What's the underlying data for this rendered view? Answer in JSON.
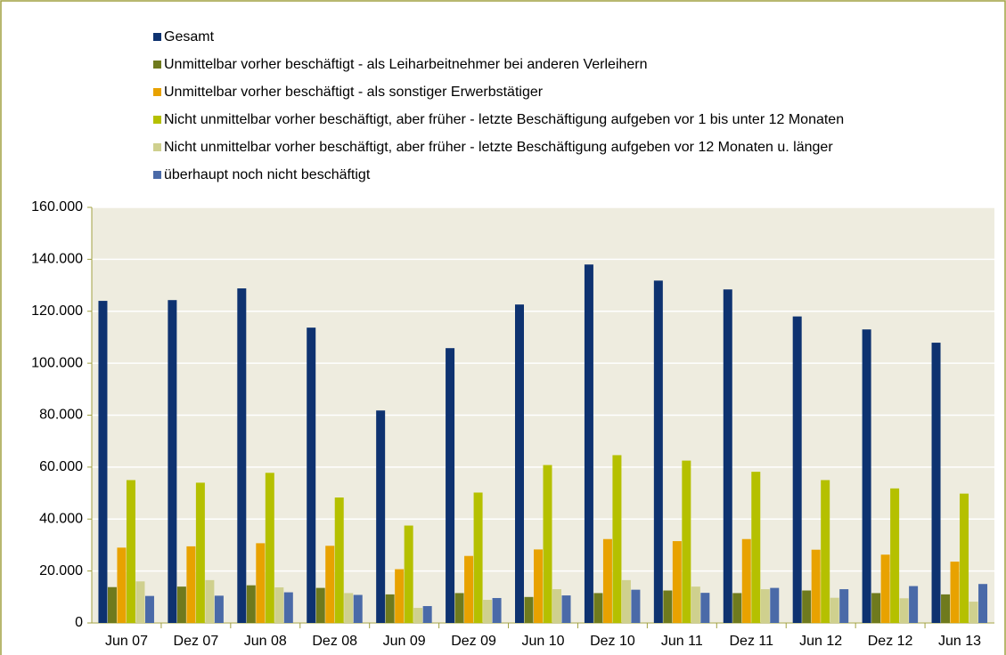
{
  "chart_data": {
    "type": "bar",
    "categories": [
      "Jun 07",
      "Dez 07",
      "Jun 08",
      "Dez 08",
      "Jun 09",
      "Dez 09",
      "Jun 10",
      "Dez 10",
      "Jun 11",
      "Dez 11",
      "Jun 12",
      "Dez 12",
      "Jun 13"
    ],
    "series": [
      {
        "name": "Gesamt",
        "color": "#0e3270",
        "values": [
          124000,
          124300,
          128800,
          113700,
          81800,
          105800,
          122600,
          138000,
          131800,
          128400,
          118000,
          113000,
          107900
        ]
      },
      {
        "name": "Unmittelbar vorher beschäftigt - als Leiharbeitnehmer bei anderen Verleihern",
        "color": "#6f7a1d",
        "values": [
          13800,
          14000,
          14500,
          13500,
          11000,
          11500,
          10000,
          11500,
          12500,
          11500,
          12500,
          11500,
          11000
        ]
      },
      {
        "name": "Unmittelbar vorher beschäftigt - als sonstiger Erwerbstätiger",
        "color": "#e8a200",
        "values": [
          29000,
          29500,
          30700,
          29700,
          20700,
          25800,
          28300,
          32300,
          31500,
          32300,
          28200,
          26300,
          23600
        ]
      },
      {
        "name": "Nicht unmittelbar vorher beschäftigt, aber früher - letzte Beschäftigung aufgeben vor 1 bis unter 12 Monaten",
        "color": "#b5c000",
        "values": [
          55000,
          54000,
          57800,
          48300,
          37500,
          50200,
          60800,
          64600,
          62500,
          58200,
          55000,
          51800,
          49800
        ]
      },
      {
        "name": "Nicht unmittelbar vorher beschäftigt, aber früher - letzte Beschäftigung aufgeben vor 12 Monaten u. länger",
        "color": "#cfd08e",
        "values": [
          16000,
          16500,
          13700,
          11500,
          5800,
          8900,
          13000,
          16500,
          14000,
          13000,
          9700,
          9500,
          8200
        ]
      },
      {
        "name": "überhaupt noch nicht beschäftigt",
        "color": "#4a6aa8",
        "values": [
          10400,
          10500,
          11800,
          10800,
          6500,
          9600,
          10600,
          12800,
          11600,
          13500,
          13000,
          14200,
          15000
        ]
      }
    ],
    "ylim": [
      0,
      160000
    ],
    "yticks": [
      0,
      {
        "value": 20000,
        "label": "20.000"
      },
      {
        "value": 40000,
        "label": "40.000"
      },
      {
        "value": 60000,
        "label": "60.000"
      },
      {
        "value": 80000,
        "label": "80.000"
      },
      {
        "value": 100000,
        "label": "100.000"
      },
      {
        "value": 120000,
        "label": "120.000"
      },
      {
        "value": 140000,
        "label": "140.000"
      },
      {
        "value": 160000,
        "label": "160.000"
      }
    ],
    "grid": true
  }
}
